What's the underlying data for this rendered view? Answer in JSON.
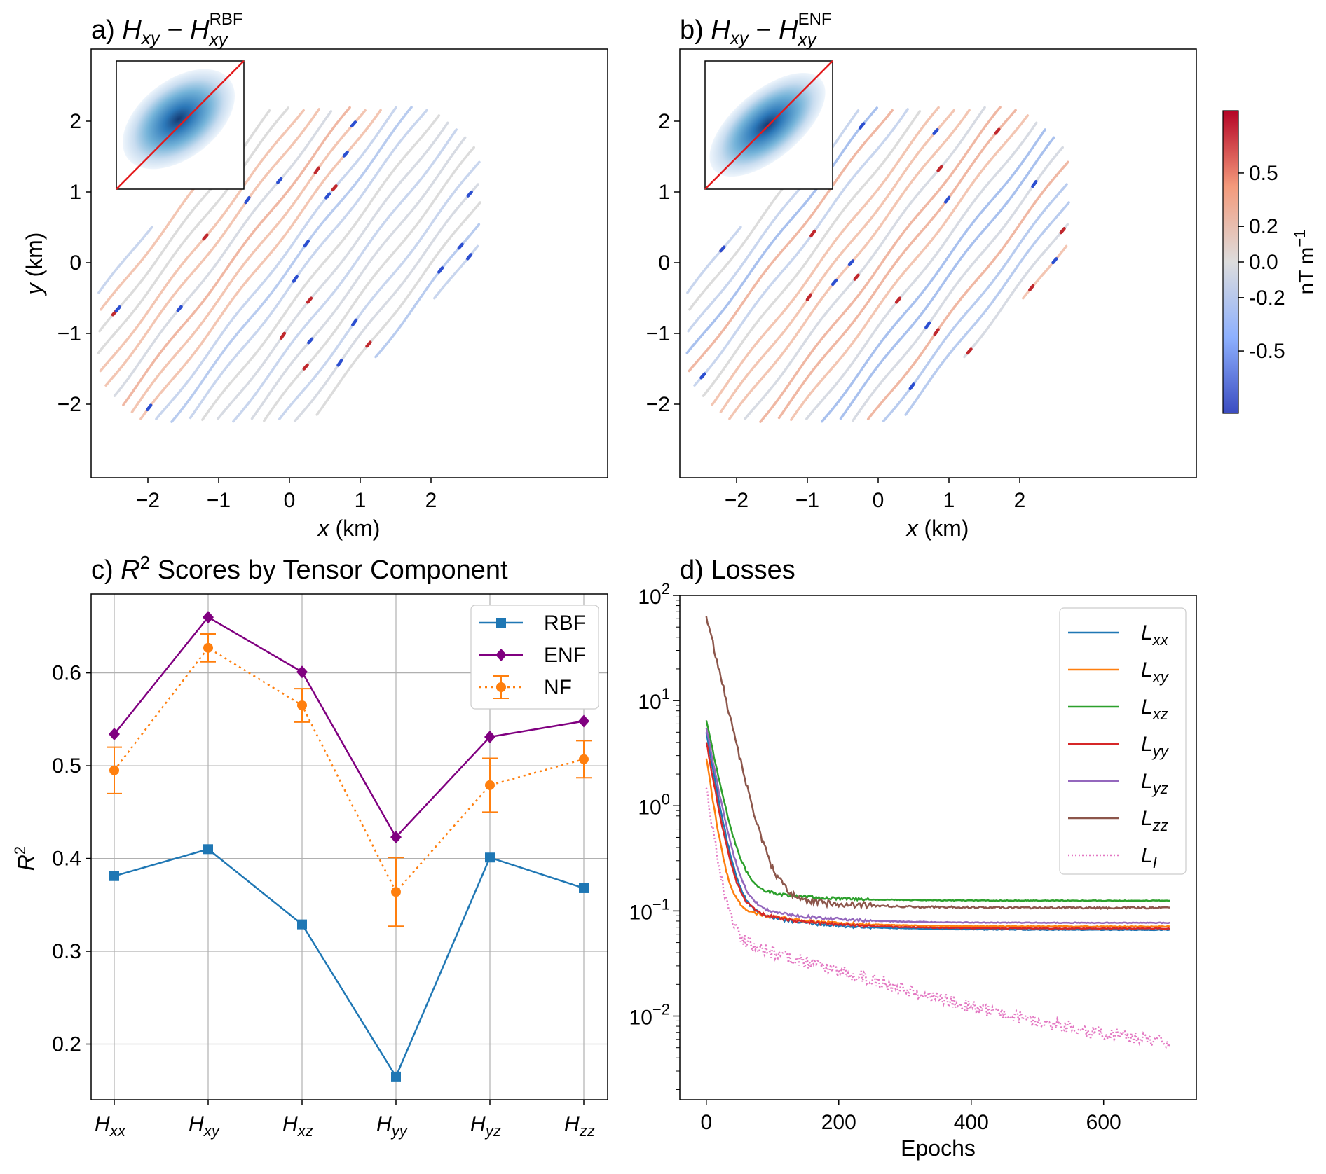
{
  "figure": {
    "panels": {
      "a": {
        "label": "a)",
        "title_main": "H",
        "title_sub": "xy",
        "title_minus": " − ",
        "title_ref": "H",
        "title_ref_sub": "xy",
        "title_ref_sup": "RBF"
      },
      "b": {
        "label": "b)",
        "title_main": "H",
        "title_sub": "xy",
        "title_minus": " − ",
        "title_ref": "H",
        "title_ref_sub": "xy",
        "title_ref_sup": "ENF"
      },
      "c": {
        "label": "c)",
        "title_text": " Scores by Tensor Component",
        "title_r": "R",
        "title_sup": "2"
      },
      "d": {
        "label": "d)",
        "title_text": "Losses"
      }
    },
    "map_axes": {
      "xlabel_var": "x",
      "xlabel_unit": " (km)",
      "ylabel_var": "y",
      "ylabel_unit": " (km)",
      "xticks": [
        "−2",
        "−1",
        "0",
        "1",
        "2"
      ],
      "yticks": [
        "2",
        "1",
        "0",
        "−1",
        "−2"
      ]
    },
    "colorbar": {
      "ticks": [
        "0.5",
        "0.2",
        "0.0",
        "-0.2",
        "-0.5"
      ],
      "label": "nT m",
      "label_sup": "−1",
      "colors": {
        "high": "#b40426",
        "mid": "#dddddd",
        "low": "#3b4cc0"
      }
    },
    "inset_line_color": "#e31a1c"
  },
  "chart_data": [
    {
      "panel": "c",
      "type": "line",
      "title": "R² Scores by Tensor Component",
      "categories": [
        "xx",
        "xy",
        "xz",
        "yy",
        "yz",
        "zz"
      ],
      "category_prefix": "H",
      "ylabel": "R",
      "ylabel_sup": "2",
      "ylim": [
        0.14,
        0.685
      ],
      "yticks": [
        0.2,
        0.3,
        0.4,
        0.5,
        0.6
      ],
      "ytick_labels": [
        "0.2",
        "0.3",
        "0.4",
        "0.5",
        "0.6"
      ],
      "grid": true,
      "legend_position": "top-right",
      "series": [
        {
          "name": "RBF",
          "color": "#1f77b4",
          "marker": "square",
          "style": "solid",
          "values": [
            0.381,
            0.41,
            0.329,
            0.165,
            0.401,
            0.368
          ]
        },
        {
          "name": "ENF",
          "color": "#800080",
          "marker": "diamond",
          "style": "solid",
          "values": [
            0.534,
            0.66,
            0.601,
            0.423,
            0.531,
            0.548
          ]
        },
        {
          "name": "NF",
          "color": "#ff7f0e",
          "marker": "circle",
          "style": "dotted",
          "values": [
            0.495,
            0.627,
            0.565,
            0.364,
            0.479,
            0.507
          ],
          "errors": [
            0.025,
            0.015,
            0.018,
            0.037,
            0.029,
            0.02
          ]
        }
      ]
    },
    {
      "panel": "d",
      "type": "line",
      "title": "Losses",
      "xlabel": "Epochs",
      "xlim": [
        -40,
        740
      ],
      "xticks": [
        0,
        200,
        400,
        600
      ],
      "xtick_labels": [
        "0",
        "200",
        "400",
        "600"
      ],
      "yscale": "log",
      "ylim": [
        0.0016,
        100
      ],
      "yticks": [
        0.01,
        0.1,
        1,
        10,
        100
      ],
      "ytick_base": "10",
      "ytick_exponents": [
        "−2",
        "−1",
        "0",
        "1",
        "2"
      ],
      "legend_position": "top-right",
      "series": [
        {
          "name": "L",
          "sub": "xx",
          "color": "#1f77b4",
          "style": "solid",
          "start": 5.0,
          "plateau": 0.066,
          "tau": 12,
          "mid": 0.3,
          "noise": 0.04
        },
        {
          "name": "L",
          "sub": "xy",
          "color": "#ff7f0e",
          "style": "solid",
          "start": 2.8,
          "plateau": 0.071,
          "tau": 10,
          "mid": 0.28,
          "noise": 0.04
        },
        {
          "name": "L",
          "sub": "xz",
          "color": "#2ca02c",
          "style": "solid",
          "start": 6.5,
          "plateau": 0.125,
          "tau": 14,
          "mid": 0.35,
          "noise": 0.04
        },
        {
          "name": "L",
          "sub": "yy",
          "color": "#d62728",
          "style": "solid",
          "start": 4.0,
          "plateau": 0.068,
          "tau": 12,
          "mid": 0.3,
          "noise": 0.04
        },
        {
          "name": "L",
          "sub": "yz",
          "color": "#9467bd",
          "style": "solid",
          "start": 5.5,
          "plateau": 0.077,
          "tau": 13,
          "mid": 0.32,
          "noise": 0.04
        },
        {
          "name": "L",
          "sub": "zz",
          "color": "#8c564b",
          "style": "solid",
          "start": 65.0,
          "plateau": 0.107,
          "tau": 16,
          "mid": 0.45,
          "noise": 0.1
        },
        {
          "name": "L",
          "sub": "I",
          "color": "#e377c2",
          "style": "dotted",
          "start": 1.5,
          "plateau": 0.0035,
          "tau": 10,
          "mid": 0.12,
          "noise": 0.18
        }
      ]
    }
  ]
}
